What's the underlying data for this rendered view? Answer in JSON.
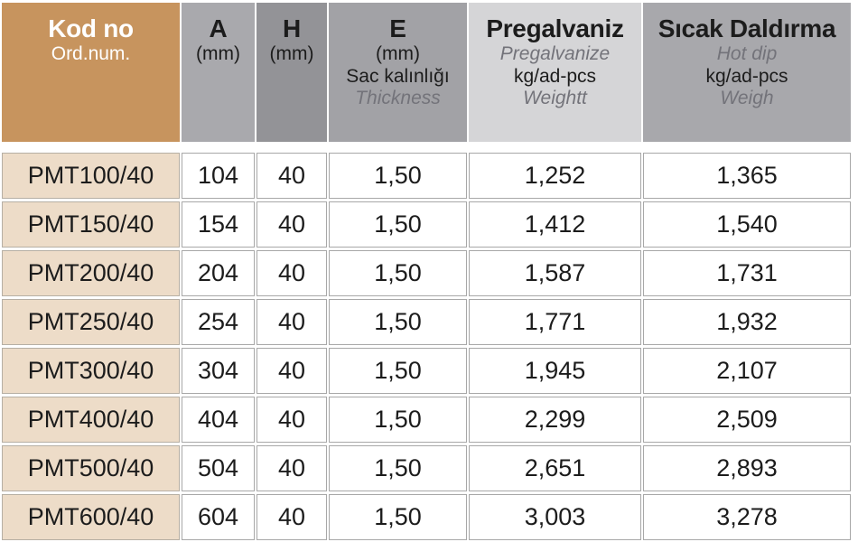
{
  "colors": {
    "header_label_bg": "#C7945E",
    "row_label_bg": "#EDDCC8",
    "col_a_bg": "#A9A9AD",
    "col_h_bg": "#939397",
    "col_e_bg": "#A2A2A6",
    "col_pregalvaniz_bg": "#D5D5D7",
    "col_sicak_bg": "#A8A8AC",
    "text_dark": "#1C1C1C",
    "text_light": "#FFFFFF",
    "text_muted": "#73737A",
    "grid_border": "#A8A8A8"
  },
  "table": {
    "columns": [
      {
        "key": "kod-no",
        "title": "Kod no",
        "fg": "light",
        "bg": "header_label_bg",
        "lines": [
          {
            "text": "Ord.num.",
            "kind": "plain"
          }
        ]
      },
      {
        "key": "a",
        "title": "A",
        "fg": "dark",
        "bg": "col_a_bg",
        "lines": [
          {
            "text": "(mm)",
            "kind": "plain"
          }
        ]
      },
      {
        "key": "h",
        "title": "H",
        "fg": "dark",
        "bg": "col_h_bg",
        "lines": [
          {
            "text": "(mm)",
            "kind": "plain"
          }
        ]
      },
      {
        "key": "e",
        "title": "E",
        "fg": "dark",
        "bg": "col_e_bg",
        "lines": [
          {
            "text": "(mm)",
            "kind": "plain"
          },
          {
            "text": "Sac kalınlığı",
            "kind": "plain"
          },
          {
            "text": "Thickness",
            "kind": "muted"
          }
        ]
      },
      {
        "key": "pregalvaniz",
        "title": "Pregalvaniz",
        "fg": "dark",
        "bg": "col_pregalvaniz_bg",
        "lines": [
          {
            "text": "Pregalvanize",
            "kind": "muted"
          },
          {
            "text": "kg/ad-pcs",
            "kind": "plain"
          },
          {
            "text": "Weightt",
            "kind": "muted"
          }
        ]
      },
      {
        "key": "sicak-daldirma",
        "title": "Sıcak Daldırma",
        "fg": "dark",
        "bg": "col_sicak_bg",
        "lines": [
          {
            "text": "Hot dip",
            "kind": "muted"
          },
          {
            "text": "kg/ad-pcs",
            "kind": "plain"
          },
          {
            "text": "Weigh",
            "kind": "muted"
          }
        ]
      }
    ],
    "rows": [
      [
        "PMT100/40",
        "104",
        "40",
        "1,50",
        "1,252",
        "1,365"
      ],
      [
        "PMT150/40",
        "154",
        "40",
        "1,50",
        "1,412",
        "1,540"
      ],
      [
        "PMT200/40",
        "204",
        "40",
        "1,50",
        "1,587",
        "1,731"
      ],
      [
        "PMT250/40",
        "254",
        "40",
        "1,50",
        "1,771",
        "1,932"
      ],
      [
        "PMT300/40",
        "304",
        "40",
        "1,50",
        "1,945",
        "2,107"
      ],
      [
        "PMT400/40",
        "404",
        "40",
        "1,50",
        "2,299",
        "2,509"
      ],
      [
        "PMT500/40",
        "504",
        "40",
        "1,50",
        "2,651",
        "2,893"
      ],
      [
        "PMT600/40",
        "604",
        "40",
        "1,50",
        "3,003",
        "3,278"
      ]
    ]
  }
}
